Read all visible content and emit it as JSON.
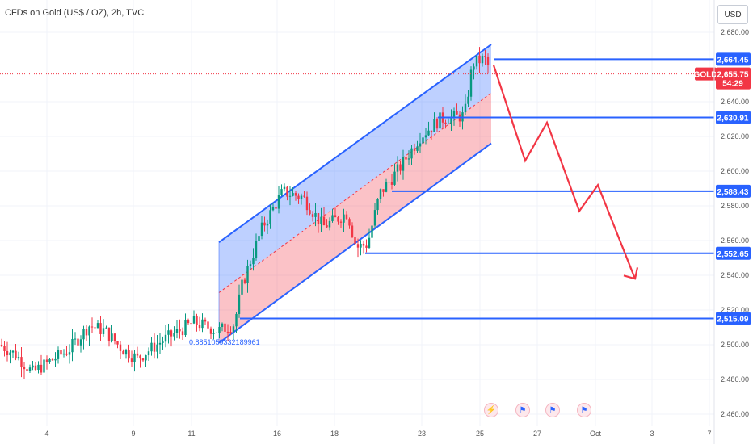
{
  "header": {
    "title": "CFDs on Gold (US$ / OZ), 2h, TVC",
    "currency": "USD"
  },
  "chart_data": {
    "type": "candlestick",
    "symbol": "GOLD",
    "last_price": "2,655.75",
    "countdown": "54:29",
    "ylim": [
      2455,
      2687
    ],
    "y_ticks": [
      "2,680.00",
      "2,640.00",
      "2,620.00",
      "2,600.00",
      "2,580.00",
      "2,560.00",
      "2,540.00",
      "2,520.00",
      "2,500.00",
      "2,480.00",
      "2,460.00"
    ],
    "x_ticks": [
      "4",
      "9",
      "11",
      "16",
      "18",
      "23",
      "25",
      "27",
      "Oct",
      "3",
      "7"
    ],
    "levels": [
      {
        "value": 2664.45,
        "label": "2,664.45"
      },
      {
        "value": 2630.91,
        "label": "2,630.91"
      },
      {
        "value": 2588.43,
        "label": "2,588.43"
      },
      {
        "value": 2552.65,
        "label": "2,552.65"
      },
      {
        "value": 2515.09,
        "label": "2,515.09"
      }
    ],
    "fib_label": "0.8851059332189961",
    "forecast_path": [
      2661,
      2606,
      2628,
      2577,
      2592,
      2538
    ],
    "colors": {
      "up": "#089981",
      "down": "#f23645",
      "channel_line": "#2962ff",
      "forecast": "#f23645",
      "level": "#2962ff",
      "price_tag": "#f23645"
    }
  },
  "events": [
    {
      "icon": "lightning-icon",
      "glyph": "⚡"
    },
    {
      "icon": "us-flag-icon",
      "glyph": "⚑"
    },
    {
      "icon": "us-flag-icon",
      "glyph": "⚑"
    },
    {
      "icon": "us-flag-icon",
      "glyph": "⚑"
    }
  ]
}
